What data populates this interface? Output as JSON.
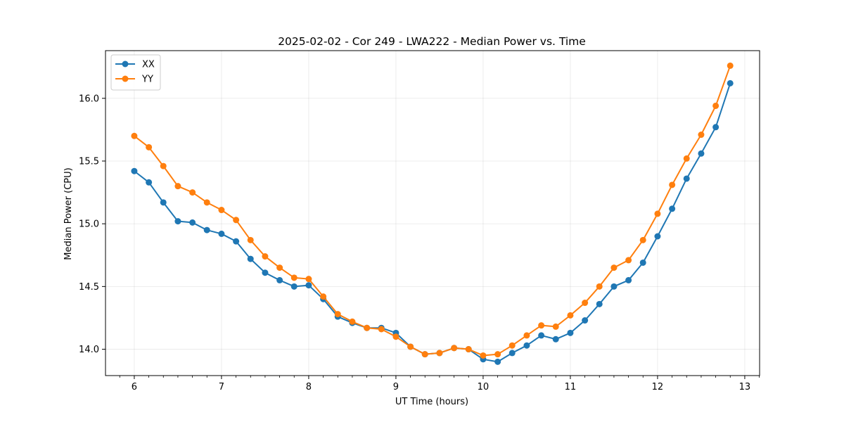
{
  "chart_data": {
    "type": "line",
    "title": "2025-02-02 - Cor 249 - LWA222 - Median Power vs. Time",
    "xlabel": "UT Time (hours)",
    "ylabel": "Median Power (CPU)",
    "xlim": [
      5.67,
      13.17
    ],
    "ylim": [
      13.79,
      16.38
    ],
    "xticks": [
      6,
      7,
      8,
      9,
      10,
      11,
      12,
      13
    ],
    "xtick_labels": [
      "6",
      "7",
      "8",
      "9",
      "10",
      "11",
      "12",
      "13"
    ],
    "yticks": [
      14.0,
      14.5,
      15.0,
      15.5,
      16.0
    ],
    "ytick_labels": [
      "14.0",
      "14.5",
      "15.0",
      "15.5",
      "16.0"
    ],
    "grid": true,
    "legend_position": "top-left",
    "x": [
      6.0,
      6.167,
      6.333,
      6.5,
      6.667,
      6.833,
      7.0,
      7.167,
      7.333,
      7.5,
      7.667,
      7.833,
      8.0,
      8.167,
      8.333,
      8.5,
      8.667,
      8.833,
      9.0,
      9.167,
      9.333,
      9.5,
      9.667,
      9.833,
      10.0,
      10.167,
      10.333,
      10.5,
      10.667,
      10.833,
      11.0,
      11.167,
      11.333,
      11.5,
      11.667,
      11.833,
      12.0,
      12.167,
      12.333,
      12.5,
      12.667,
      12.833
    ],
    "series": [
      {
        "name": "XX",
        "color": "#1f77b4",
        "values": [
          15.42,
          15.33,
          15.17,
          15.02,
          15.01,
          14.95,
          14.92,
          14.86,
          14.72,
          14.61,
          14.55,
          14.5,
          14.51,
          14.4,
          14.26,
          14.21,
          14.17,
          14.17,
          14.13,
          14.02,
          13.96,
          13.97,
          14.01,
          14.0,
          13.92,
          13.9,
          13.97,
          14.03,
          14.11,
          14.08,
          14.13,
          14.23,
          14.36,
          14.5,
          14.55,
          14.69,
          14.9,
          15.12,
          15.36,
          15.56,
          15.77,
          16.12
        ]
      },
      {
        "name": "YY",
        "color": "#ff7f0e",
        "values": [
          15.7,
          15.61,
          15.46,
          15.3,
          15.25,
          15.17,
          15.11,
          15.03,
          14.87,
          14.74,
          14.65,
          14.57,
          14.56,
          14.42,
          14.28,
          14.22,
          14.17,
          14.16,
          14.1,
          14.02,
          13.96,
          13.97,
          14.01,
          14.0,
          13.95,
          13.96,
          14.03,
          14.11,
          14.19,
          14.18,
          14.27,
          14.37,
          14.5,
          14.65,
          14.71,
          14.87,
          15.08,
          15.31,
          15.52,
          15.71,
          15.94,
          16.26
        ]
      }
    ]
  }
}
